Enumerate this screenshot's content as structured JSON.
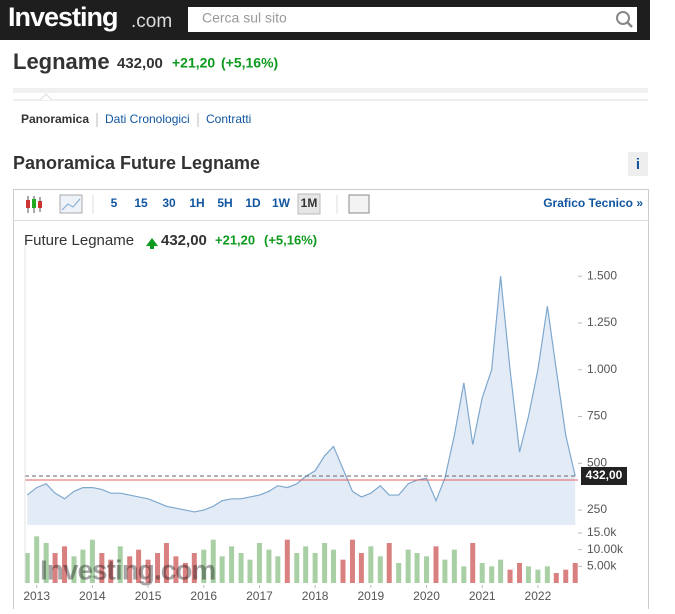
{
  "header": {
    "logo": "Investing",
    "logo_suffix": ".com",
    "search_placeholder": "Cerca sul sito"
  },
  "instrument": {
    "name": "Legname",
    "price": "432,00",
    "change": "+21,20",
    "change_pct": "(+5,16%)"
  },
  "tabs": [
    "Panoramica",
    "Dati Cronologici",
    "Contratti"
  ],
  "section_title": "Panoramica Future Legname",
  "info_icon": "i",
  "toolbar": {
    "intervals": [
      "5",
      "15",
      "30",
      "1H",
      "5H",
      "1D",
      "1W",
      "1M"
    ],
    "active_index": 7,
    "link": "Grafico Tecnico »"
  },
  "chart_data": {
    "type": "area",
    "title": "Future Legname",
    "price": "432,00",
    "change": "+21,20",
    "change_pct": "(+5,16%)",
    "color": "#7fa8cf",
    "fill_color": "#e3ecf6",
    "x": [
      2012.83,
      2013.0,
      2013.17,
      2013.33,
      2013.5,
      2013.67,
      2013.83,
      2014.0,
      2014.17,
      2014.33,
      2014.5,
      2014.67,
      2014.83,
      2015.0,
      2015.17,
      2015.33,
      2015.5,
      2015.67,
      2015.83,
      2016.0,
      2016.17,
      2016.33,
      2016.5,
      2016.67,
      2016.83,
      2017.0,
      2017.17,
      2017.33,
      2017.5,
      2017.67,
      2017.83,
      2018.0,
      2018.17,
      2018.33,
      2018.5,
      2018.67,
      2018.83,
      2019.0,
      2019.17,
      2019.33,
      2019.5,
      2019.67,
      2019.83,
      2020.0,
      2020.17,
      2020.33,
      2020.5,
      2020.67,
      2020.83,
      2021.0,
      2021.17,
      2021.33,
      2021.5,
      2021.67,
      2021.83,
      2022.0,
      2022.17,
      2022.33,
      2022.5,
      2022.67
    ],
    "values": [
      330,
      370,
      390,
      340,
      310,
      350,
      370,
      370,
      360,
      340,
      340,
      330,
      320,
      310,
      290,
      270,
      260,
      250,
      240,
      250,
      270,
      300,
      310,
      310,
      320,
      330,
      350,
      380,
      370,
      390,
      430,
      460,
      540,
      590,
      470,
      350,
      320,
      340,
      380,
      330,
      330,
      390,
      410,
      420,
      300,
      420,
      650,
      930,
      600,
      850,
      1000,
      1500,
      1000,
      560,
      750,
      1000,
      1340,
      1000,
      650,
      432
    ],
    "xlim": [
      2012.79,
      2022.72
    ],
    "xticks": [
      2013,
      2014,
      2015,
      2016,
      2017,
      2018,
      2019,
      2020,
      2021,
      2022
    ],
    "ylim": [
      170,
      1560
    ],
    "yticks": [
      250,
      {
        "value": 500,
        "label": "500"
      },
      750,
      {
        "value": 1000,
        "label": "1.000"
      },
      {
        "value": 1250,
        "label": "1.250"
      },
      {
        "value": 1500,
        "label": "1.500"
      }
    ],
    "last_value": {
      "value": 432,
      "label": "432,00"
    },
    "previous_close": 410.8,
    "watermark": "Investing.com",
    "volume": {
      "values": [
        9000,
        14000,
        12000,
        9000,
        11000,
        8000,
        10000,
        13000,
        9000,
        7000,
        11000,
        8000,
        10000,
        7000,
        9000,
        12000,
        8000,
        6000,
        9000,
        10000,
        13000,
        8000,
        11000,
        9000,
        7000,
        12000,
        10000,
        8000,
        13000,
        9000,
        11000,
        9000,
        12000,
        10000,
        7000,
        13000,
        9000,
        11000,
        8000,
        12000,
        6000,
        10000,
        9000,
        8000,
        11000,
        7000,
        10000,
        5000,
        12000,
        6000,
        5000,
        7000,
        4000,
        6000,
        5000,
        4000,
        5000,
        3000,
        4000,
        6000
      ],
      "ylim": [
        0,
        17400
      ],
      "yticks": [
        {
          "value": 5000,
          "label": "5.00k"
        },
        {
          "value": 10000,
          "label": "10.00k"
        },
        {
          "value": 15000,
          "label": "15.0k"
        }
      ],
      "up_color": "#a9cfa5",
      "down_color": "#d98080"
    }
  }
}
